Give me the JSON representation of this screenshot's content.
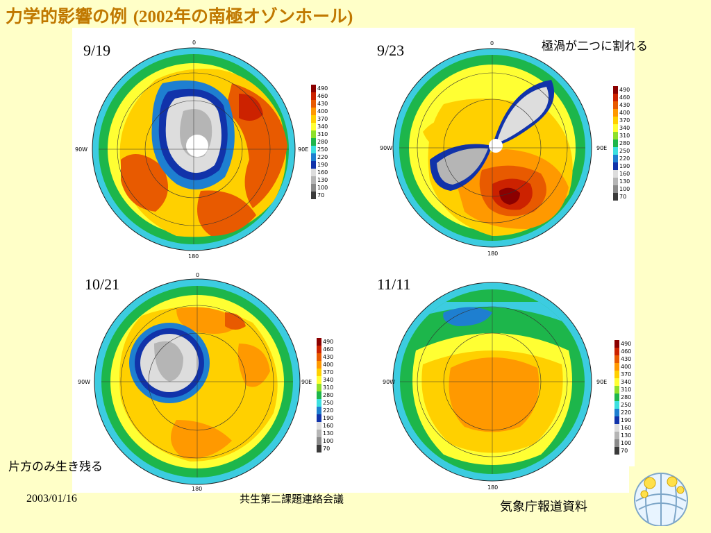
{
  "title": {
    "main": "力学的影響の例",
    "paren": "(2002年の南極オゾンホール)"
  },
  "annotations": {
    "split": "極渦が二つに割れる",
    "survive": "片方のみ生き残る"
  },
  "axis_labels": {
    "top": "0",
    "bottom": "180",
    "left": "90W",
    "right": "90E"
  },
  "legend": {
    "values": [
      "490",
      "460",
      "430",
      "400",
      "370",
      "340",
      "310",
      "280",
      "250",
      "220",
      "190",
      "160",
      "130",
      "100",
      "70"
    ],
    "colors": [
      "#8b0000",
      "#cc2200",
      "#e85a00",
      "#ff9900",
      "#ffd000",
      "#ffff33",
      "#8ee02a",
      "#1db64b",
      "#3ce0e0",
      "#1e7fd0",
      "#1133aa",
      "#dddddd",
      "#b5b5b5",
      "#8a8a8a",
      "#3a3a3a"
    ]
  },
  "panels": [
    {
      "date": "9/19"
    },
    {
      "date": "9/23"
    },
    {
      "date": "10/21"
    },
    {
      "date": "11/11"
    }
  ],
  "footer": {
    "date": "2003/01/16",
    "meeting": "共生第二課題連絡会議",
    "source": "気象庁報道資料"
  },
  "colors": {
    "title": "#c07800",
    "background": "#ffffc8"
  }
}
